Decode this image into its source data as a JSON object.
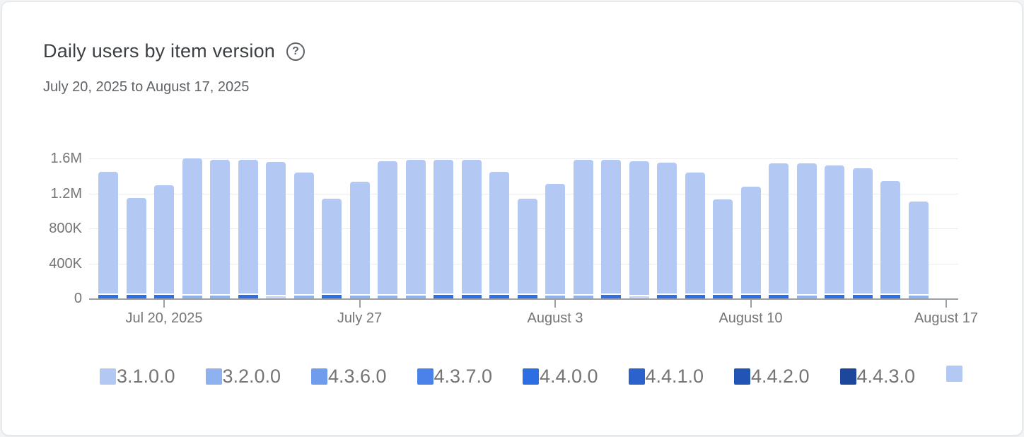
{
  "header": {
    "title": "Daily users by item version",
    "help_glyph": "?",
    "date_range": "July 20, 2025 to August 17, 2025"
  },
  "colors": {
    "bar_main": "#b3c9f3",
    "axis": "#9aa0a6",
    "grid": "#ececee",
    "text_muted": "#757575",
    "base_segment_colors": {
      "dark": "#2f6fe3",
      "light": "#8eb1ef",
      "vlight": "#c7d6f8"
    }
  },
  "chart_data": {
    "type": "bar",
    "stacked": true,
    "title": "Daily users by item version",
    "xlabel": "",
    "ylabel": "",
    "ylim": [
      0,
      1600000
    ],
    "grid": true,
    "legend_position": "bottom",
    "y_ticks": [
      {
        "label": "1.6M",
        "value": 1600000
      },
      {
        "label": "1.2M",
        "value": 1200000
      },
      {
        "label": "800K",
        "value": 800000
      },
      {
        "label": "400K",
        "value": 400000
      },
      {
        "label": "0",
        "value": 0
      }
    ],
    "x_ticks": [
      {
        "label": "Jul 20, 2025",
        "slot": 3
      },
      {
        "label": "July 27",
        "slot": 10
      },
      {
        "label": "August 3",
        "slot": 17
      },
      {
        "label": "August 10",
        "slot": 24
      },
      {
        "label": "August 17",
        "slot": 31
      }
    ],
    "bars": [
      {
        "total": 1450000,
        "base_segment": "dark"
      },
      {
        "total": 1150000,
        "base_segment": "dark"
      },
      {
        "total": 1290000,
        "base_segment": "dark"
      },
      {
        "total": 1600000,
        "base_segment": "light"
      },
      {
        "total": 1580000,
        "base_segment": "light"
      },
      {
        "total": 1580000,
        "base_segment": "dark"
      },
      {
        "total": 1560000,
        "base_segment": "vlight"
      },
      {
        "total": 1440000,
        "base_segment": "light"
      },
      {
        "total": 1140000,
        "base_segment": "dark"
      },
      {
        "total": 1330000,
        "base_segment": "light"
      },
      {
        "total": 1570000,
        "base_segment": "light"
      },
      {
        "total": 1580000,
        "base_segment": "light"
      },
      {
        "total": 1580000,
        "base_segment": "dark"
      },
      {
        "total": 1580000,
        "base_segment": "dark"
      },
      {
        "total": 1450000,
        "base_segment": "dark"
      },
      {
        "total": 1140000,
        "base_segment": "dark"
      },
      {
        "total": 1310000,
        "base_segment": "light"
      },
      {
        "total": 1580000,
        "base_segment": "light"
      },
      {
        "total": 1580000,
        "base_segment": "dark"
      },
      {
        "total": 1570000,
        "base_segment": "vlight"
      },
      {
        "total": 1550000,
        "base_segment": "dark"
      },
      {
        "total": 1440000,
        "base_segment": "dark"
      },
      {
        "total": 1130000,
        "base_segment": "dark"
      },
      {
        "total": 1280000,
        "base_segment": "dark"
      },
      {
        "total": 1540000,
        "base_segment": "dark"
      },
      {
        "total": 1540000,
        "base_segment": "light"
      },
      {
        "total": 1520000,
        "base_segment": "dark"
      },
      {
        "total": 1490000,
        "base_segment": "dark"
      },
      {
        "total": 1340000,
        "base_segment": "dark"
      },
      {
        "total": 1110000,
        "base_segment": "light"
      }
    ]
  },
  "legend": {
    "items": [
      {
        "label": "3.1.0.0",
        "color": "#b3c9f3"
      },
      {
        "label": "3.2.0.0",
        "color": "#8eb1ef"
      },
      {
        "label": "4.3.6.0",
        "color": "#6f9cec"
      },
      {
        "label": "4.3.7.0",
        "color": "#4b82e9"
      },
      {
        "label": "4.4.0.0",
        "color": "#2d6fe3"
      },
      {
        "label": "4.4.1.0",
        "color": "#2b62cb"
      },
      {
        "label": "4.4.2.0",
        "color": "#2154b4"
      },
      {
        "label": "4.4.3.0",
        "color": "#1d479c"
      },
      {
        "label": "",
        "color": "#b3c9f3"
      }
    ]
  }
}
